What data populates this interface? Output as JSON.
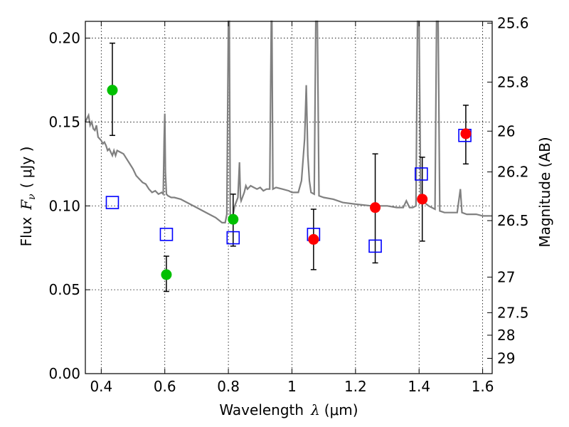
{
  "chart_data": {
    "type": "scatter",
    "xlabel": {
      "prefix": "Wavelength",
      "symbol": "λ",
      "unit": "(μm)"
    },
    "ylabel": {
      "prefix": "Flux",
      "symbol": "F",
      "subscript": "ν",
      "unit": "( μJy )"
    },
    "y2label": "Magnitude (AB)",
    "xlim": [
      0.35,
      1.63
    ],
    "ylim": [
      0.0,
      0.21
    ],
    "grid": true,
    "x_ticks": [
      {
        "v": 0.4,
        "label": "0.4"
      },
      {
        "v": 0.6,
        "label": "0.6"
      },
      {
        "v": 0.8,
        "label": "0.8"
      },
      {
        "v": 1.0,
        "label": "1"
      },
      {
        "v": 1.2,
        "label": "1.2"
      },
      {
        "v": 1.4,
        "label": "1.4"
      },
      {
        "v": 1.6,
        "label": "1.6"
      }
    ],
    "y_ticks": [
      {
        "v": 0.0,
        "label": "0.00"
      },
      {
        "v": 0.05,
        "label": "0.05"
      },
      {
        "v": 0.1,
        "label": "0.10"
      },
      {
        "v": 0.15,
        "label": "0.15"
      },
      {
        "v": 0.2,
        "label": "0.20"
      }
    ],
    "y2_ticks": [
      {
        "v": 25.6,
        "label": "25.6"
      },
      {
        "v": 25.8,
        "label": "25.8"
      },
      {
        "v": 26,
        "label": "26"
      },
      {
        "v": 26.2,
        "label": "26.2"
      },
      {
        "v": 26.5,
        "label": "26.5"
      },
      {
        "v": 27,
        "label": "27"
      },
      {
        "v": 27.5,
        "label": "27.5"
      },
      {
        "v": 28,
        "label": "28"
      },
      {
        "v": 29,
        "label": "29"
      }
    ],
    "colors": {
      "model": "#808080",
      "green": "#00c000",
      "red": "#ff0000",
      "box": "#0000ff",
      "error": "#000000",
      "grid": "#000000"
    },
    "model_spectrum": [
      [
        0.35,
        0.15
      ],
      [
        0.355,
        0.152
      ],
      [
        0.36,
        0.154
      ],
      [
        0.365,
        0.148
      ],
      [
        0.37,
        0.15
      ],
      [
        0.375,
        0.146
      ],
      [
        0.38,
        0.145
      ],
      [
        0.385,
        0.148
      ],
      [
        0.39,
        0.141
      ],
      [
        0.395,
        0.14
      ],
      [
        0.4,
        0.139
      ],
      [
        0.405,
        0.137
      ],
      [
        0.41,
        0.138
      ],
      [
        0.415,
        0.136
      ],
      [
        0.42,
        0.133
      ],
      [
        0.425,
        0.134
      ],
      [
        0.43,
        0.132
      ],
      [
        0.435,
        0.13
      ],
      [
        0.44,
        0.133
      ],
      [
        0.445,
        0.13
      ],
      [
        0.45,
        0.133
      ],
      [
        0.46,
        0.132
      ],
      [
        0.47,
        0.131
      ],
      [
        0.48,
        0.128
      ],
      [
        0.49,
        0.125
      ],
      [
        0.5,
        0.122
      ],
      [
        0.51,
        0.118
      ],
      [
        0.52,
        0.116
      ],
      [
        0.53,
        0.114
      ],
      [
        0.54,
        0.113
      ],
      [
        0.55,
        0.11
      ],
      [
        0.56,
        0.108
      ],
      [
        0.57,
        0.109
      ],
      [
        0.58,
        0.107
      ],
      [
        0.59,
        0.108
      ],
      [
        0.595,
        0.107
      ],
      [
        0.598,
        0.14
      ],
      [
        0.6,
        0.155
      ],
      [
        0.602,
        0.12
      ],
      [
        0.605,
        0.107
      ],
      [
        0.61,
        0.106
      ],
      [
        0.62,
        0.105
      ],
      [
        0.63,
        0.105
      ],
      [
        0.65,
        0.104
      ],
      [
        0.67,
        0.102
      ],
      [
        0.7,
        0.099
      ],
      [
        0.72,
        0.097
      ],
      [
        0.74,
        0.095
      ],
      [
        0.76,
        0.093
      ],
      [
        0.78,
        0.09
      ],
      [
        0.79,
        0.09
      ],
      [
        0.795,
        0.095
      ],
      [
        0.8,
        0.21
      ],
      [
        0.803,
        0.21
      ],
      [
        0.806,
        0.09
      ],
      [
        0.81,
        0.092
      ],
      [
        0.815,
        0.095
      ],
      [
        0.82,
        0.1
      ],
      [
        0.83,
        0.105
      ],
      [
        0.835,
        0.126
      ],
      [
        0.838,
        0.105
      ],
      [
        0.84,
        0.103
      ],
      [
        0.85,
        0.108
      ],
      [
        0.855,
        0.112
      ],
      [
        0.86,
        0.11
      ],
      [
        0.87,
        0.112
      ],
      [
        0.88,
        0.111
      ],
      [
        0.89,
        0.11
      ],
      [
        0.9,
        0.111
      ],
      [
        0.91,
        0.109
      ],
      [
        0.92,
        0.11
      ],
      [
        0.93,
        0.11
      ],
      [
        0.935,
        0.21
      ],
      [
        0.937,
        0.21
      ],
      [
        0.94,
        0.11
      ],
      [
        0.95,
        0.111
      ],
      [
        0.97,
        0.11
      ],
      [
        0.99,
        0.109
      ],
      [
        1.0,
        0.108
      ],
      [
        1.01,
        0.108
      ],
      [
        1.02,
        0.108
      ],
      [
        1.03,
        0.115
      ],
      [
        1.04,
        0.14
      ],
      [
        1.045,
        0.172
      ],
      [
        1.05,
        0.13
      ],
      [
        1.055,
        0.115
      ],
      [
        1.06,
        0.108
      ],
      [
        1.07,
        0.107
      ],
      [
        1.075,
        0.21
      ],
      [
        1.08,
        0.21
      ],
      [
        1.085,
        0.106
      ],
      [
        1.1,
        0.105
      ],
      [
        1.13,
        0.104
      ],
      [
        1.16,
        0.102
      ],
      [
        1.2,
        0.101
      ],
      [
        1.25,
        0.1
      ],
      [
        1.3,
        0.1
      ],
      [
        1.33,
        0.099
      ],
      [
        1.35,
        0.099
      ],
      [
        1.36,
        0.103
      ],
      [
        1.37,
        0.099
      ],
      [
        1.38,
        0.099
      ],
      [
        1.39,
        0.1
      ],
      [
        1.395,
        0.21
      ],
      [
        1.4,
        0.21
      ],
      [
        1.405,
        0.105
      ],
      [
        1.41,
        0.103
      ],
      [
        1.43,
        0.1
      ],
      [
        1.45,
        0.098
      ],
      [
        1.455,
        0.21
      ],
      [
        1.46,
        0.21
      ],
      [
        1.465,
        0.097
      ],
      [
        1.48,
        0.096
      ],
      [
        1.5,
        0.096
      ],
      [
        1.52,
        0.096
      ],
      [
        1.53,
        0.11
      ],
      [
        1.535,
        0.096
      ],
      [
        1.55,
        0.095
      ],
      [
        1.58,
        0.095
      ],
      [
        1.6,
        0.094
      ],
      [
        1.63,
        0.094
      ]
    ],
    "green_points": [
      {
        "x": 0.435,
        "y": 0.169,
        "lo": 0.142,
        "hi": 0.197
      },
      {
        "x": 0.605,
        "y": 0.059,
        "lo": 0.049,
        "hi": 0.07
      },
      {
        "x": 0.815,
        "y": 0.092,
        "lo": 0.076,
        "hi": 0.107
      }
    ],
    "red_points": [
      {
        "x": 1.068,
        "y": 0.08,
        "lo": 0.062,
        "hi": 0.098
      },
      {
        "x": 1.262,
        "y": 0.099,
        "lo": 0.066,
        "hi": 0.131
      },
      {
        "x": 1.41,
        "y": 0.104,
        "lo": 0.079,
        "hi": 0.129
      },
      {
        "x": 1.547,
        "y": 0.143,
        "lo": 0.125,
        "hi": 0.16
      }
    ],
    "box_points": [
      {
        "x": 0.435,
        "y": 0.102
      },
      {
        "x": 0.605,
        "y": 0.083
      },
      {
        "x": 0.815,
        "y": 0.081
      },
      {
        "x": 1.068,
        "y": 0.083
      },
      {
        "x": 1.262,
        "y": 0.076
      },
      {
        "x": 1.407,
        "y": 0.119
      },
      {
        "x": 1.544,
        "y": 0.142
      }
    ]
  }
}
